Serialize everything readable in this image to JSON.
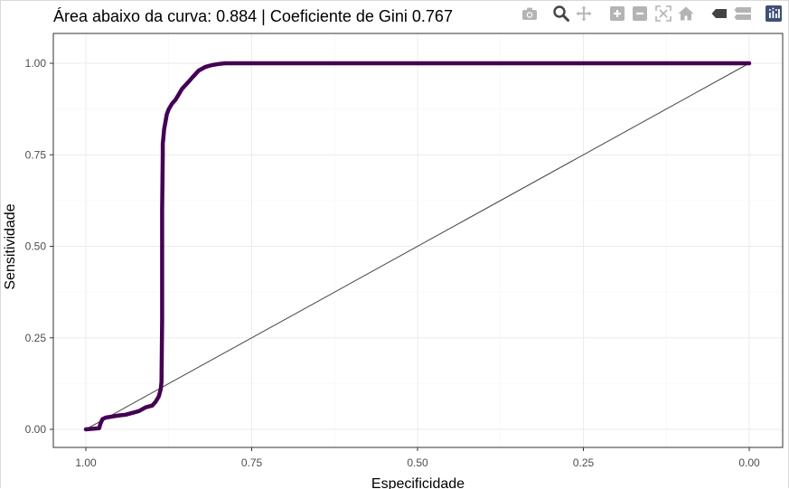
{
  "title": "Área abaixo da curva: 0.884 | Coeficiente de Gini 0.767",
  "modebar": {
    "icons": [
      "camera-icon",
      "zoom-icon",
      "pan-icon",
      "zoom-in-icon",
      "zoom-out-icon",
      "autoscale-icon",
      "reset-axes-icon",
      "hover-closest-icon",
      "hover-compare-icon",
      "plotly-logo-icon"
    ],
    "active_color": "#444444",
    "inactive_color": "#b4b4b4",
    "logo_color": "#3f4f75"
  },
  "chart_data": {
    "type": "line",
    "title": "Área abaixo da curva: 0.884 | Coeficiente de Gini 0.767",
    "xlabel": "Especificidade",
    "ylabel": "Sensitividade",
    "xlim": [
      1.0,
      0.0
    ],
    "ylim": [
      0.0,
      1.0
    ],
    "x_reversed": true,
    "x_ticks": [
      "1.00",
      "0.75",
      "0.50",
      "0.25",
      "0.00"
    ],
    "y_ticks": [
      "0.00",
      "0.25",
      "0.50",
      "0.75",
      "1.00"
    ],
    "grid": true,
    "legend": "none",
    "series": [
      {
        "color": "#440154",
        "x": [
          1.0,
          0.98,
          0.978,
          0.975,
          0.97,
          0.96,
          0.95,
          0.94,
          0.93,
          0.92,
          0.91,
          0.9,
          0.895,
          0.89,
          0.887,
          0.886,
          0.885,
          0.885,
          0.884,
          0.884,
          0.883,
          0.882,
          0.88,
          0.878,
          0.875,
          0.87,
          0.865,
          0.86,
          0.855,
          0.85,
          0.845,
          0.84,
          0.835,
          0.83,
          0.82,
          0.81,
          0.8,
          0.79,
          0.0
        ],
        "y": [
          0.0,
          0.003,
          0.015,
          0.028,
          0.032,
          0.035,
          0.038,
          0.04,
          0.045,
          0.05,
          0.06,
          0.065,
          0.075,
          0.09,
          0.11,
          0.13,
          0.3,
          0.6,
          0.75,
          0.78,
          0.8,
          0.82,
          0.84,
          0.86,
          0.875,
          0.89,
          0.9,
          0.915,
          0.93,
          0.94,
          0.95,
          0.96,
          0.97,
          0.98,
          0.99,
          0.995,
          0.998,
          1.0,
          1.0
        ]
      },
      {
        "color": "#444444",
        "x": [
          1.0,
          0.0
        ],
        "y": [
          0.0,
          1.0
        ]
      }
    ]
  }
}
